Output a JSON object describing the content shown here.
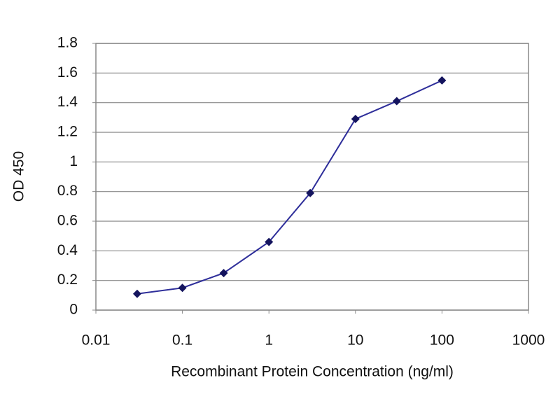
{
  "chart_data": {
    "type": "line",
    "x_label": "Recombinant Protein Concentration (ng/ml)",
    "y_label": "OD 450",
    "x": [
      0.03,
      0.1,
      0.3,
      1,
      3,
      10,
      30,
      100
    ],
    "values": [
      0.11,
      0.15,
      0.25,
      0.46,
      0.79,
      1.29,
      1.41,
      1.55
    ],
    "color": "#2e2e9a",
    "marker_color": "#14145e",
    "xscale": "log",
    "xlim": [
      0.01,
      1000
    ],
    "xticks": [
      0.01,
      0.1,
      1,
      10,
      100,
      1000
    ],
    "ylim": [
      0,
      1.8
    ],
    "yticks": [
      0,
      0.2,
      0.4,
      0.6,
      0.8,
      1,
      1.2,
      1.4,
      1.6,
      1.8
    ],
    "grid": true
  }
}
